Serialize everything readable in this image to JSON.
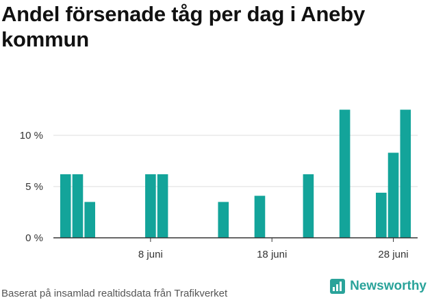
{
  "title": "Andel försenade tåg per dag i Aneby kommun",
  "footer": "Baserat på insamlad realtidsdata från Trafikverket",
  "brand": {
    "name": "Newsworthy",
    "icon": "newsworthy-logo-icon",
    "color": "#2aa39a"
  },
  "chart_data": {
    "type": "bar",
    "title": "Andel försenade tåg per dag i Aneby kommun",
    "xlabel": "",
    "ylabel": "",
    "color": "#13a49a",
    "ylim": [
      0,
      13.2
    ],
    "xlim": [
      31,
      61
    ],
    "yticks": [
      {
        "value": 0,
        "label": "0 %"
      },
      {
        "value": 5,
        "label": "5 %"
      },
      {
        "value": 10,
        "label": "10 %"
      }
    ],
    "xticks": [
      {
        "value": 39,
        "label": "8 juni"
      },
      {
        "value": 49,
        "label": "18 juni"
      },
      {
        "value": 59,
        "label": "28 juni"
      }
    ],
    "grid": true,
    "points": [
      {
        "x": 32,
        "y": 6.2
      },
      {
        "x": 33,
        "y": 6.2
      },
      {
        "x": 34,
        "y": 3.5
      },
      {
        "x": 39,
        "y": 6.2
      },
      {
        "x": 40,
        "y": 6.2
      },
      {
        "x": 45,
        "y": 3.5
      },
      {
        "x": 48,
        "y": 4.1
      },
      {
        "x": 52,
        "y": 6.2
      },
      {
        "x": 55,
        "y": 12.5
      },
      {
        "x": 58,
        "y": 4.4
      },
      {
        "x": 59,
        "y": 8.3
      },
      {
        "x": 60,
        "y": 12.5
      }
    ]
  }
}
